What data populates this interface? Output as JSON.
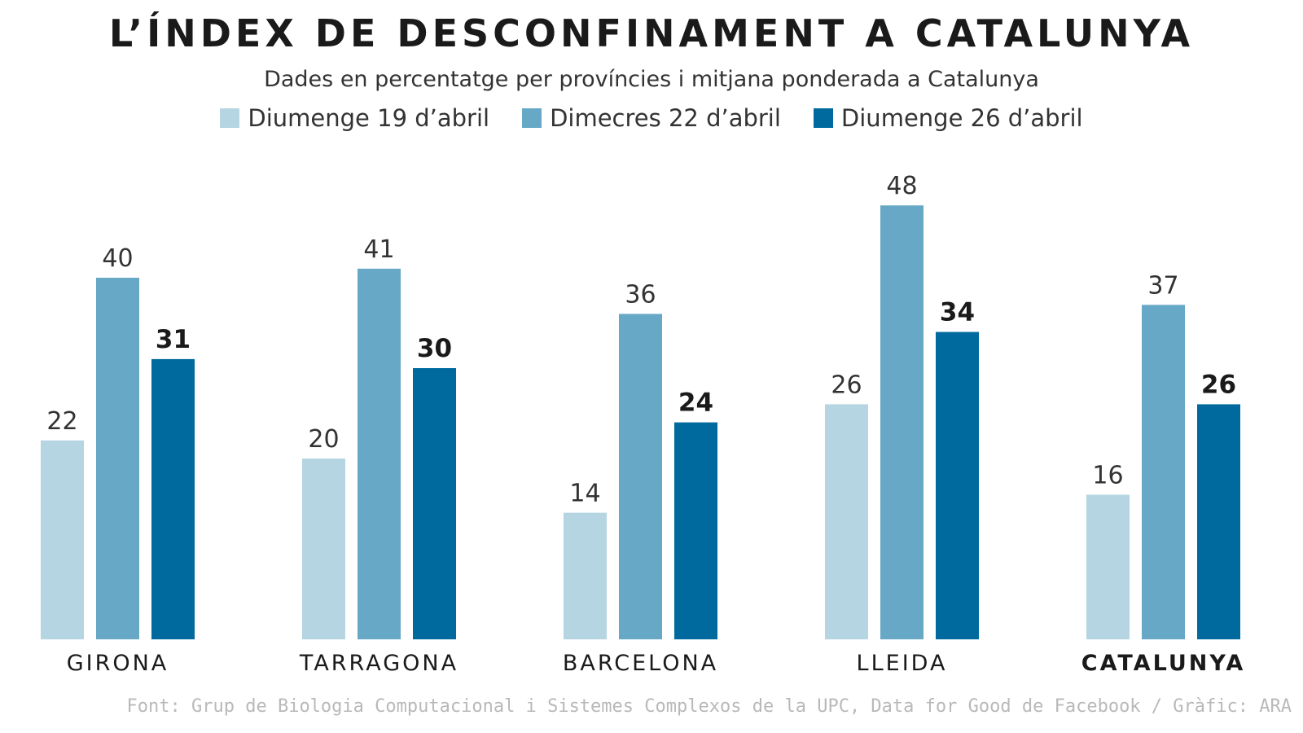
{
  "chart_data": {
    "type": "bar",
    "title": "L’ÍNDEX DE DESCONFINAMENT A CATALUNYA",
    "subtitle": "Dades en percentatge per províncies i mitjana ponderada a Catalunya",
    "categories": [
      "GIRONA",
      "TARRAGONA",
      "BARCELONA",
      "LLEIDA",
      "CATALUNYA"
    ],
    "highlight_category": "CATALUNYA",
    "series": [
      {
        "name": "Diumenge 19 d’abril",
        "color": "#b4d5e1",
        "bold_labels": false,
        "values": [
          22,
          20,
          14,
          26,
          16
        ]
      },
      {
        "name": "Dimecres 22 d’abril",
        "color": "#67a8c6",
        "bold_labels": false,
        "values": [
          40,
          41,
          36,
          48,
          37
        ]
      },
      {
        "name": "Diumenge 26 d’abril",
        "color": "#006a9f",
        "bold_labels": true,
        "values": [
          31,
          30,
          24,
          34,
          26
        ]
      }
    ],
    "ylim": [
      0,
      50
    ],
    "grid": false,
    "legend": "top-center",
    "xlabel": "",
    "ylabel": ""
  },
  "source": "Font: Grup de Biologia Computacional i Sistemes Complexos de la UPC, Data for Good de Facebook / Gràfic: ARA"
}
